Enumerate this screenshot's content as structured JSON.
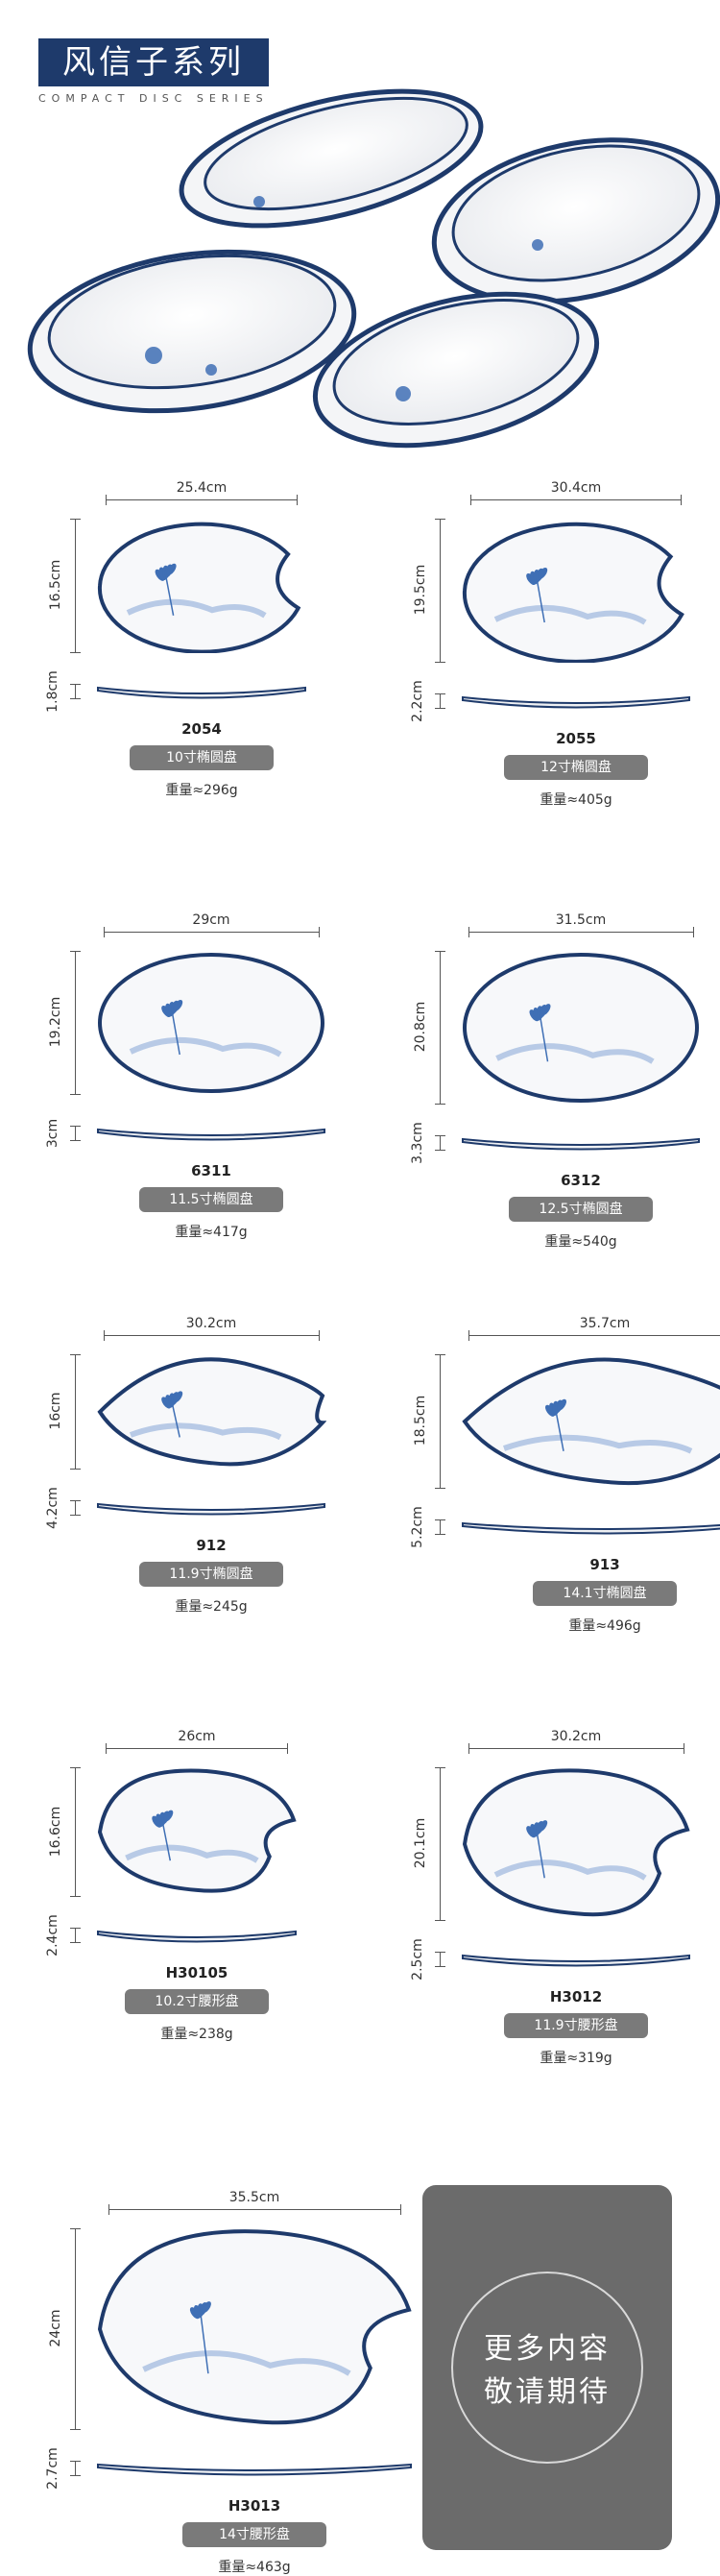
{
  "header": {
    "title": "风信子系列",
    "subtitle": "COMPACT DISC SERIES"
  },
  "products": [
    {
      "code": "2054",
      "name": "10寸椭圆盘",
      "weight": "重量≈296g",
      "width": "25.4cm",
      "depth": "16.5cm",
      "height": "1.8cm",
      "shape": "notched"
    },
    {
      "code": "2055",
      "name": "12寸椭圆盘",
      "weight": "重量≈405g",
      "width": "30.4cm",
      "depth": "19.5cm",
      "height": "2.2cm",
      "shape": "notched"
    },
    {
      "code": "6311",
      "name": "11.5寸椭圆盘",
      "weight": "重量≈417g",
      "width": "29cm",
      "depth": "19.2cm",
      "height": "3cm",
      "shape": "oval"
    },
    {
      "code": "6312",
      "name": "12.5寸椭圆盘",
      "weight": "重量≈540g",
      "width": "31.5cm",
      "depth": "20.8cm",
      "height": "3.3cm",
      "shape": "oval"
    },
    {
      "code": "912",
      "name": "11.9寸椭圆盘",
      "weight": "重量≈245g",
      "width": "30.2cm",
      "depth": "16cm",
      "height": "4.2cm",
      "shape": "leaf"
    },
    {
      "code": "913",
      "name": "14.1寸椭圆盘",
      "weight": "重量≈496g",
      "width": "35.7cm",
      "depth": "18.5cm",
      "height": "5.2cm",
      "shape": "leaf"
    },
    {
      "code": "H30105",
      "name": "10.2寸腰形盘",
      "weight": "重量≈238g",
      "width": "26cm",
      "depth": "16.6cm",
      "height": "2.4cm",
      "shape": "kidney"
    },
    {
      "code": "H3012",
      "name": "11.9寸腰形盘",
      "weight": "重量≈319g",
      "width": "30.2cm",
      "depth": "20.1cm",
      "height": "2.5cm",
      "shape": "kidney"
    },
    {
      "code": "H3013",
      "name": "14寸腰形盘",
      "weight": "重量≈463g",
      "width": "35.5cm",
      "depth": "24cm",
      "height": "2.7cm",
      "shape": "kidney"
    }
  ],
  "more_panel": {
    "line1": "更多内容",
    "line2": "敬请期待"
  },
  "colors": {
    "rim": "#1e3a6b",
    "pill": "#7a7a7a",
    "flower": "#3f6fb5"
  }
}
